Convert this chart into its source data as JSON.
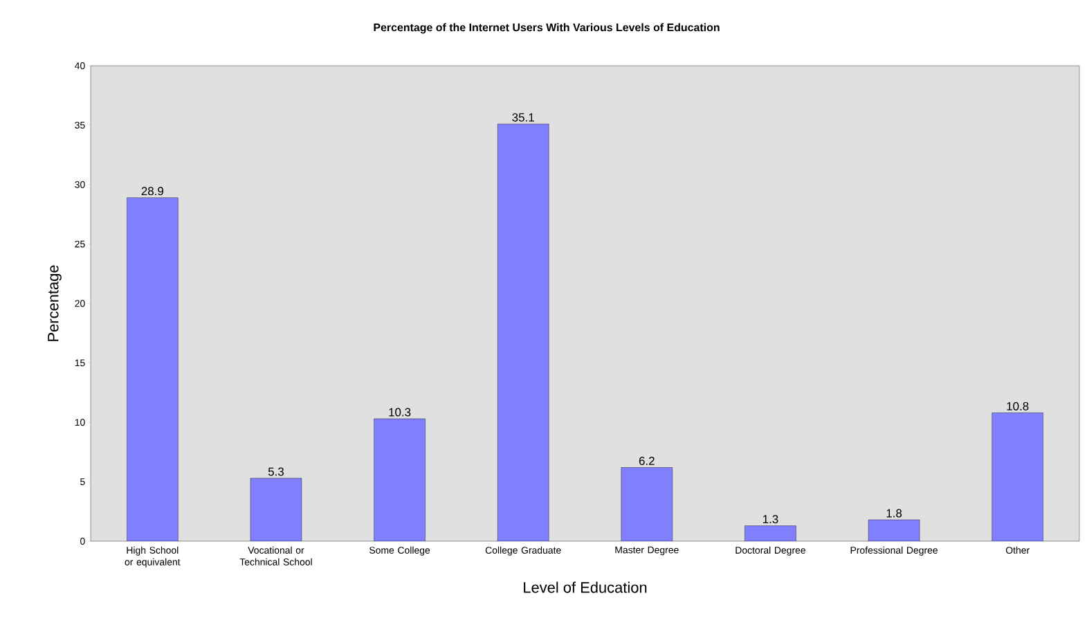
{
  "chart_data": {
    "type": "bar",
    "title": "Percentage of the Internet Users With Various Levels of Education",
    "xlabel": "Level of Education",
    "ylabel": "Percentage",
    "categories": [
      "High School or equivalent",
      "Vocational or Technical School",
      "Some College",
      "College Graduate",
      "Master Degree",
      "Doctoral Degree",
      "Professional Degree",
      "Other"
    ],
    "values": [
      28.9,
      5.3,
      10.3,
      35.1,
      6.2,
      1.3,
      1.8,
      10.8
    ],
    "color": "#8080ff",
    "ylim": [
      0,
      40
    ],
    "yticks": [
      0,
      5,
      10,
      15,
      20,
      25,
      30,
      35,
      40
    ],
    "data_labels": true
  }
}
